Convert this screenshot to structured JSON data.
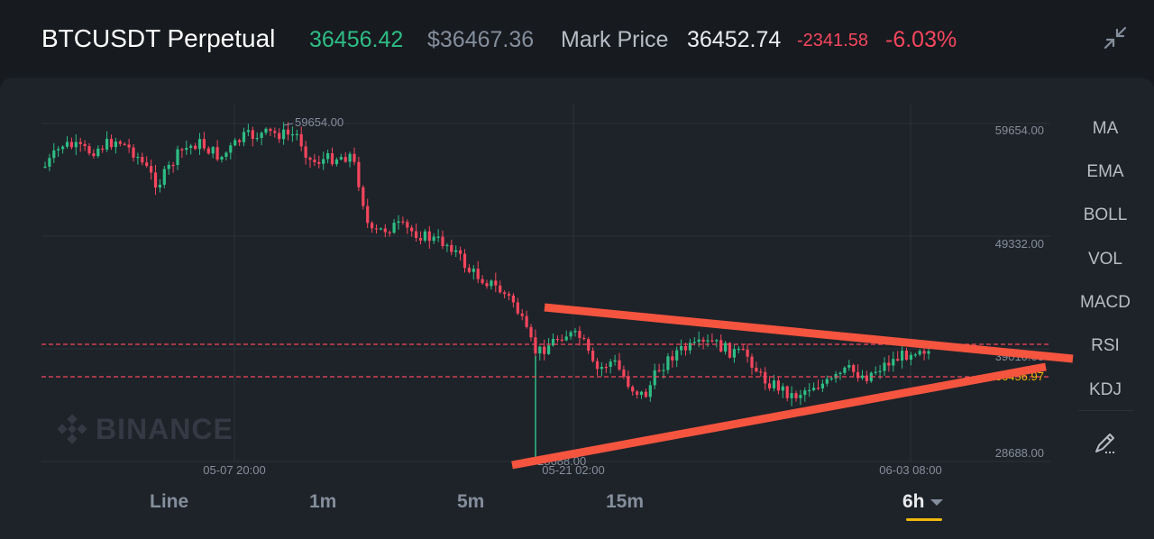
{
  "header": {
    "symbol": "BTCUSDT Perpetual",
    "last_price": "36456.42",
    "usd_price": "$36467.36",
    "mark_label": "Mark Price",
    "mark_price": "36452.74",
    "change": "-2341.58",
    "change_pct": "-6.03%"
  },
  "chart": {
    "y_labels": [
      "59654.00",
      "49332.00",
      "39010.00",
      "28688.00"
    ],
    "x_labels": [
      "05-07 20:00",
      "05-21 02:00",
      "06-03 08:00"
    ],
    "high_marker": "59654.00",
    "low_marker": "28688.00",
    "current_price_tag": "36456.97"
  },
  "indicators": [
    "MA",
    "EMA",
    "BOLL",
    "VOL",
    "MACD",
    "RSI",
    "KDJ"
  ],
  "timeframes": [
    "Line",
    "1m",
    "5m",
    "15m",
    "6h"
  ],
  "watermark": "BINANCE",
  "colors": {
    "up": "#2ebd85",
    "down": "#f6465d",
    "accent": "#f0b90b",
    "annotation": "#f5543f"
  },
  "icons": {
    "collapse": "collapse-arrows-icon",
    "draw": "pencil-draw-icon",
    "logo": "binance-logo-icon",
    "caret": "caret-down-icon"
  }
}
